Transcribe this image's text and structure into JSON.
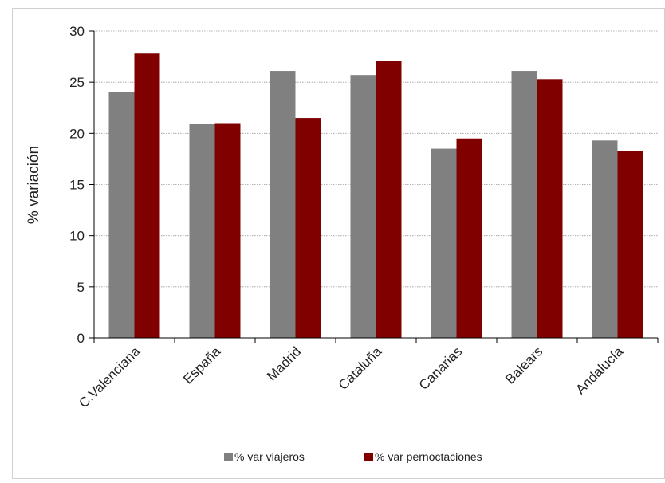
{
  "chart_data": {
    "type": "bar",
    "title": "",
    "xlabel": "",
    "ylabel": "% variación",
    "ylim": [
      0,
      30
    ],
    "yticks": [
      0,
      5,
      10,
      15,
      20,
      25,
      30
    ],
    "grid": true,
    "legend_position": "bottom",
    "categories": [
      "C.Valenciana",
      "España",
      "Madrid",
      "Cataluña",
      "Canarias",
      "Balears",
      "Andalucía"
    ],
    "series": [
      {
        "name": "% var viajeros",
        "color": "#808080",
        "values": [
          24.0,
          20.9,
          26.1,
          25.7,
          18.5,
          26.1,
          19.3
        ]
      },
      {
        "name": "% var pernoctaciones",
        "color": "#800000",
        "values": [
          27.8,
          21.0,
          21.5,
          27.1,
          19.5,
          25.3,
          18.3
        ]
      }
    ]
  }
}
